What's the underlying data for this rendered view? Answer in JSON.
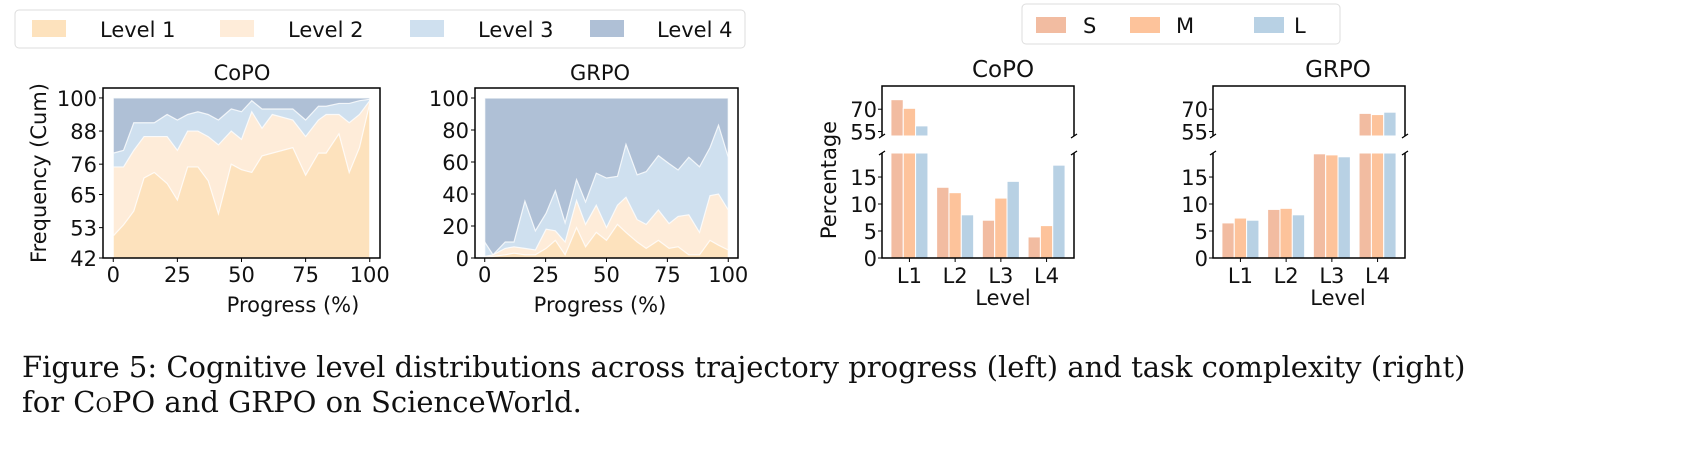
{
  "colors": {
    "level1": "#fde2bd",
    "level2": "#feecd9",
    "level3": "#cfe0ef",
    "level4": "#afc0d6",
    "S": "#f2bca1",
    "M": "#fdc39b",
    "L": "#b8d1e4"
  },
  "legend_left": [
    "Level 1",
    "Level 2",
    "Level 3",
    "Level 4"
  ],
  "legend_right": [
    "S",
    "M",
    "L"
  ],
  "caption": {
    "line1": "Figure 5: Cognitive level distributions across trajectory progress (left) and task complexity (right)",
    "line2_pre": "for ",
    "line2_sc": "CoPO",
    "line2_post": " and GRPO on ScienceWorld."
  },
  "chart_data": [
    {
      "type": "area",
      "title": "CoPO",
      "xlabel": "Progress (%)",
      "ylabel": "Frequency (Cum)",
      "xlim": [
        -4,
        104
      ],
      "ylim": [
        42,
        103.6
      ],
      "xticks": [
        0,
        25,
        50,
        75,
        100
      ],
      "yticks": [
        42,
        53,
        65,
        76,
        88,
        100
      ],
      "x": [
        0,
        4,
        8,
        12,
        16,
        21,
        25,
        29,
        33,
        37,
        41,
        46,
        50,
        54,
        58,
        62,
        70,
        75,
        80,
        83,
        88,
        92,
        96,
        100
      ],
      "cumulative": true,
      "series": [
        {
          "name": "Level 1",
          "values": [
            50,
            54,
            59,
            71,
            73,
            69,
            63,
            75,
            75,
            70,
            58,
            76,
            74,
            73,
            79,
            80,
            82,
            72,
            80,
            80,
            87,
            73,
            82,
            98
          ]
        },
        {
          "name": "Level 2",
          "values": [
            75,
            75,
            81,
            86,
            86,
            86,
            81,
            88,
            88,
            86,
            83,
            88,
            85,
            95,
            89,
            94,
            92,
            86,
            92,
            94,
            94,
            91,
            94,
            99
          ]
        },
        {
          "name": "Level 3",
          "values": [
            80,
            81,
            91,
            91,
            91,
            94,
            92,
            94,
            95,
            94,
            92,
            96,
            95,
            99,
            96,
            96,
            96,
            92,
            97,
            97,
            98,
            98,
            99,
            99.5
          ]
        },
        {
          "name": "Level 4",
          "values": [
            100,
            100,
            100,
            100,
            100,
            100,
            100,
            100,
            100,
            100,
            100,
            100,
            100,
            100,
            100,
            100,
            100,
            100,
            100,
            100,
            100,
            100,
            100,
            100
          ]
        }
      ]
    },
    {
      "type": "area",
      "title": "GRPO",
      "xlabel": "Progress (%)",
      "ylabel": "",
      "xlim": [
        -4,
        104
      ],
      "ylim": [
        0,
        106.25
      ],
      "xticks": [
        0,
        25,
        50,
        75,
        100
      ],
      "yticks": [
        0,
        20,
        40,
        60,
        80,
        100
      ],
      "x": [
        0,
        3.4,
        8.4,
        12,
        16.5,
        20.8,
        25.2,
        29,
        33,
        37.7,
        41.4,
        45.8,
        50,
        54.5,
        58,
        62.6,
        66.3,
        71.3,
        75.7,
        79.4,
        83.8,
        88.2,
        92.5,
        96,
        100
      ],
      "cumulative": true,
      "series": [
        {
          "name": "Level 1",
          "values": [
            0,
            1,
            2,
            3,
            2,
            2,
            6,
            11,
            2,
            19,
            7,
            16,
            11,
            21,
            16,
            10,
            6,
            11,
            6,
            7,
            2,
            2,
            11,
            8,
            5
          ]
        },
        {
          "name": "Level 2",
          "values": [
            1,
            2,
            6,
            7,
            6,
            5,
            18,
            17,
            10,
            36,
            21,
            33,
            19,
            33,
            38,
            24,
            21,
            30,
            21.5,
            26,
            27,
            16,
            39,
            40,
            30
          ]
        },
        {
          "name": "Level 3",
          "values": [
            10,
            2,
            10,
            10,
            35.5,
            17,
            28,
            42,
            22,
            49,
            35,
            53,
            50,
            51,
            71,
            52,
            54,
            64,
            59,
            55,
            63,
            57,
            69,
            83,
            63
          ]
        },
        {
          "name": "Level 4",
          "values": [
            100,
            100,
            100,
            100,
            100,
            100,
            100,
            100,
            100,
            100,
            100,
            100,
            100,
            100,
            100,
            100,
            100,
            100,
            100,
            100,
            100,
            100,
            100,
            100,
            100
          ]
        }
      ]
    },
    {
      "type": "bar",
      "title": "CoPO",
      "xlabel": "Level",
      "ylabel": "Percentage",
      "broken_axis": {
        "lower_ylim": [
          0,
          19.45
        ],
        "upper_ylim": [
          52,
          85.6
        ]
      },
      "lower_yticks": [
        0,
        5,
        10,
        15
      ],
      "upper_yticks": [
        55,
        70
      ],
      "categories": [
        "L1",
        "L2",
        "L3",
        "L4"
      ],
      "series": [
        {
          "name": "S",
          "values": [
            76.4,
            13.1,
            7.0,
            3.9
          ]
        },
        {
          "name": "M",
          "values": [
            70.6,
            12.1,
            11.1,
            6.0
          ]
        },
        {
          "name": "L",
          "values": [
            58.8,
            8.0,
            14.2,
            17.2
          ]
        }
      ]
    },
    {
      "type": "bar",
      "title": "GRPO",
      "xlabel": "Level",
      "ylabel": "",
      "broken_axis": {
        "lower_ylim": [
          0,
          19.45
        ],
        "upper_ylim": [
          52,
          85.6
        ]
      },
      "lower_yticks": [
        0,
        5,
        10,
        15
      ],
      "upper_yticks": [
        55,
        70
      ],
      "categories": [
        "L1",
        "L2",
        "L3",
        "L4"
      ],
      "series": [
        {
          "name": "S",
          "values": [
            6.5,
            9.0,
            19.3,
            67.2
          ]
        },
        {
          "name": "M",
          "values": [
            7.4,
            9.2,
            19.1,
            66.4
          ]
        },
        {
          "name": "L",
          "values": [
            7.0,
            8.0,
            18.75,
            68.0
          ]
        }
      ]
    }
  ]
}
